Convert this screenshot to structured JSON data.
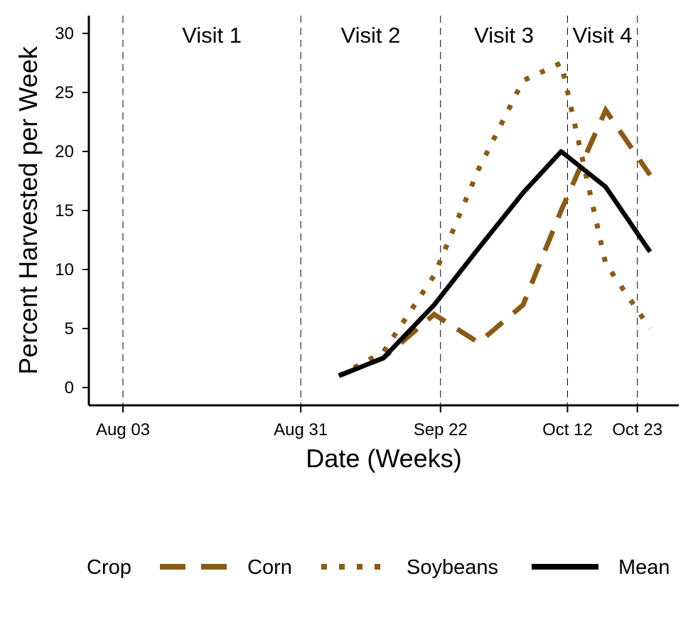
{
  "chart_data": {
    "type": "line",
    "xlabel": "Date (Weeks)",
    "ylabel": "Percent Harvested per Week",
    "x_ticks": [
      "Aug 03",
      "Aug 31",
      "Sep 22",
      "Oct 12",
      "Oct 23"
    ],
    "y_ticks": [
      "0",
      "5",
      "10",
      "15",
      "20",
      "25",
      "30"
    ],
    "ylim": [
      -1.5,
      31.5
    ],
    "grid": false,
    "legend": {
      "title": "Crop",
      "position": "bottom"
    },
    "visits": [
      {
        "label": "Visit 1",
        "date": "Aug 03"
      },
      {
        "label": "Visit 2",
        "date": "Aug 31"
      },
      {
        "label": "Visit 3",
        "date": "Sep 22"
      },
      {
        "label": "Visit 4",
        "date": "Oct 12"
      },
      {
        "label": "",
        "date": "Oct 23"
      }
    ],
    "x": [
      "Sep 06",
      "Sep 13",
      "Sep 21",
      "Sep 28",
      "Oct 05",
      "Oct 11",
      "Oct 18",
      "Oct 25"
    ],
    "series": [
      {
        "name": "Corn",
        "style": "dashed",
        "color": "#8B5A14",
        "values": [
          1.0,
          2.5,
          6.2,
          3.8,
          7.0,
          15.0,
          23.5,
          18.0
        ]
      },
      {
        "name": "Soybeans",
        "style": "dotted",
        "color": "#8B5A14",
        "values": [
          1.0,
          3.0,
          9.5,
          18.5,
          26.0,
          27.5,
          10.5,
          5.0
        ]
      },
      {
        "name": "Mean",
        "style": "solid",
        "color": "#000000",
        "values": [
          1.0,
          2.5,
          7.0,
          11.8,
          16.5,
          20.0,
          17.0,
          11.5
        ]
      }
    ]
  }
}
